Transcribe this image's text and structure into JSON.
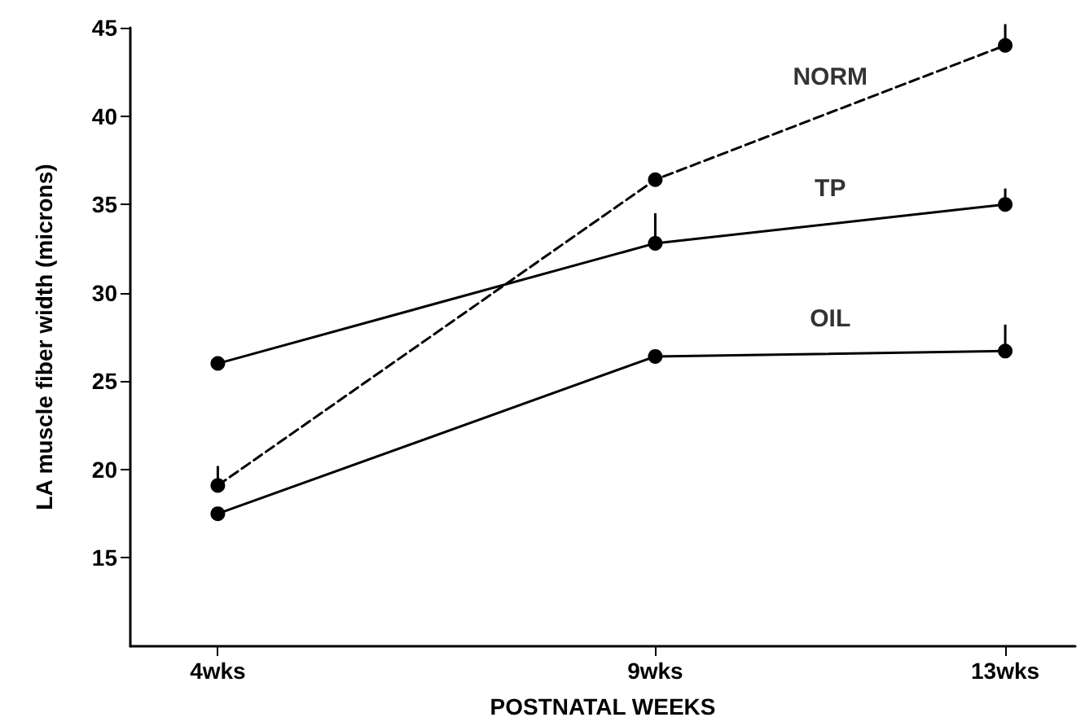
{
  "chart_data": {
    "type": "line",
    "xlabel": "POSTNATAL WEEKS",
    "ylabel": "LA muscle fiber width (microns)",
    "x": [
      4,
      9,
      13
    ],
    "series": [
      {
        "name": "NORM",
        "color": "#000000",
        "line_style": "dashed",
        "values": [
          19.1,
          36.4,
          44.0
        ],
        "errors": [
          [
            19.1,
            20.2
          ],
          null,
          [
            44.0,
            45.2
          ]
        ]
      },
      {
        "name": "TP",
        "color": "#000000",
        "line_style": "solid",
        "values": [
          26.0,
          32.8,
          35.0
        ],
        "errors": [
          null,
          [
            32.8,
            34.5
          ],
          [
            35.0,
            35.9
          ]
        ]
      },
      {
        "name": "OIL",
        "color": "#000000",
        "line_style": "solid",
        "values": [
          17.5,
          26.4,
          26.7
        ],
        "errors": [
          null,
          null,
          [
            26.7,
            28.2
          ]
        ]
      }
    ],
    "xlim": [
      3,
      13.8
    ],
    "ylim": [
      10,
      45
    ],
    "xticks": [
      {
        "value": 4,
        "label": "4wks"
      },
      {
        "value": 9,
        "label": "9wks"
      },
      {
        "value": 13,
        "label": "13wks"
      }
    ],
    "yticks": [
      15,
      20,
      25,
      30,
      35,
      40,
      45
    ],
    "grid": false,
    "legend": false,
    "marker": "circle"
  }
}
